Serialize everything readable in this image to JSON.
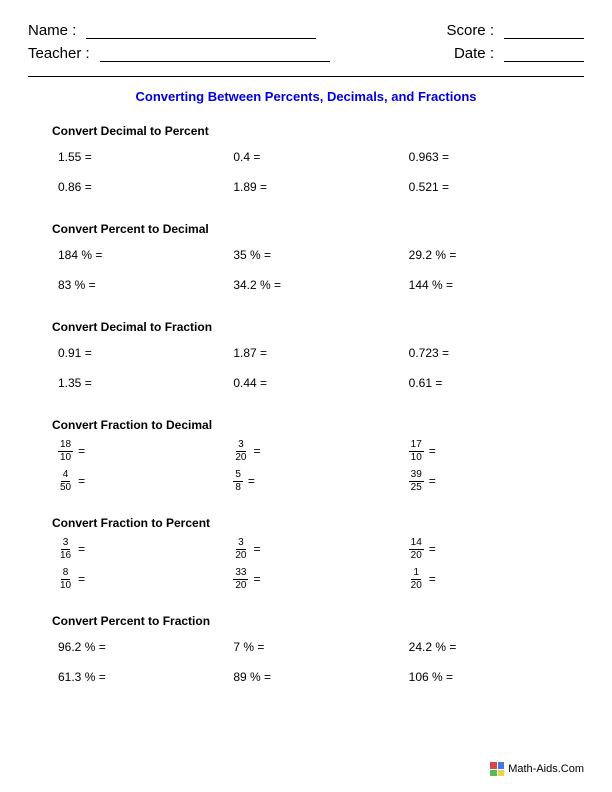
{
  "header": {
    "name_label": "Name :",
    "teacher_label": "Teacher :",
    "score_label": "Score :",
    "date_label": "Date :"
  },
  "title": "Converting Between Percents, Decimals, and Fractions",
  "sections": [
    {
      "title": "Convert Decimal to Percent",
      "type": "plain",
      "rows": [
        [
          "1.55",
          "0.4",
          "0.963"
        ],
        [
          "0.86",
          "1.89",
          "0.521"
        ]
      ]
    },
    {
      "title": "Convert Percent to Decimal",
      "type": "percent",
      "rows": [
        [
          "184 %",
          "35 %",
          "29.2 %"
        ],
        [
          "83 %",
          "34.2 %",
          "144 %"
        ]
      ]
    },
    {
      "title": "Convert Decimal to Fraction",
      "type": "plain",
      "rows": [
        [
          "0.91",
          "1.87",
          "0.723"
        ],
        [
          "1.35",
          "0.44",
          "0.61"
        ]
      ]
    },
    {
      "title": "Convert Fraction to Decimal",
      "type": "fraction",
      "rows": [
        [
          {
            "n": "18",
            "d": "10"
          },
          {
            "n": "3",
            "d": "20"
          },
          {
            "n": "17",
            "d": "10"
          }
        ],
        [
          {
            "n": "4",
            "d": "50"
          },
          {
            "n": "5",
            "d": "8"
          },
          {
            "n": "39",
            "d": "25"
          }
        ]
      ]
    },
    {
      "title": "Convert Fraction to Percent",
      "type": "fraction",
      "rows": [
        [
          {
            "n": "3",
            "d": "16"
          },
          {
            "n": "3",
            "d": "20"
          },
          {
            "n": "14",
            "d": "20"
          }
        ],
        [
          {
            "n": "8",
            "d": "10"
          },
          {
            "n": "33",
            "d": "20"
          },
          {
            "n": "1",
            "d": "20"
          }
        ]
      ]
    },
    {
      "title": "Convert Percent to Fraction",
      "type": "percent",
      "rows": [
        [
          "96.2 %",
          "7 %",
          "24.2 %"
        ],
        [
          "61.3 %",
          "89 %",
          "106 %"
        ]
      ]
    }
  ],
  "footer": {
    "text": "Math-Aids.Com",
    "icon_colors": [
      "#d94848",
      "#4878d9",
      "#5ab85a",
      "#e8d448"
    ]
  },
  "colors": {
    "title": "#0000dd",
    "text": "#000000",
    "background": "#ffffff"
  }
}
